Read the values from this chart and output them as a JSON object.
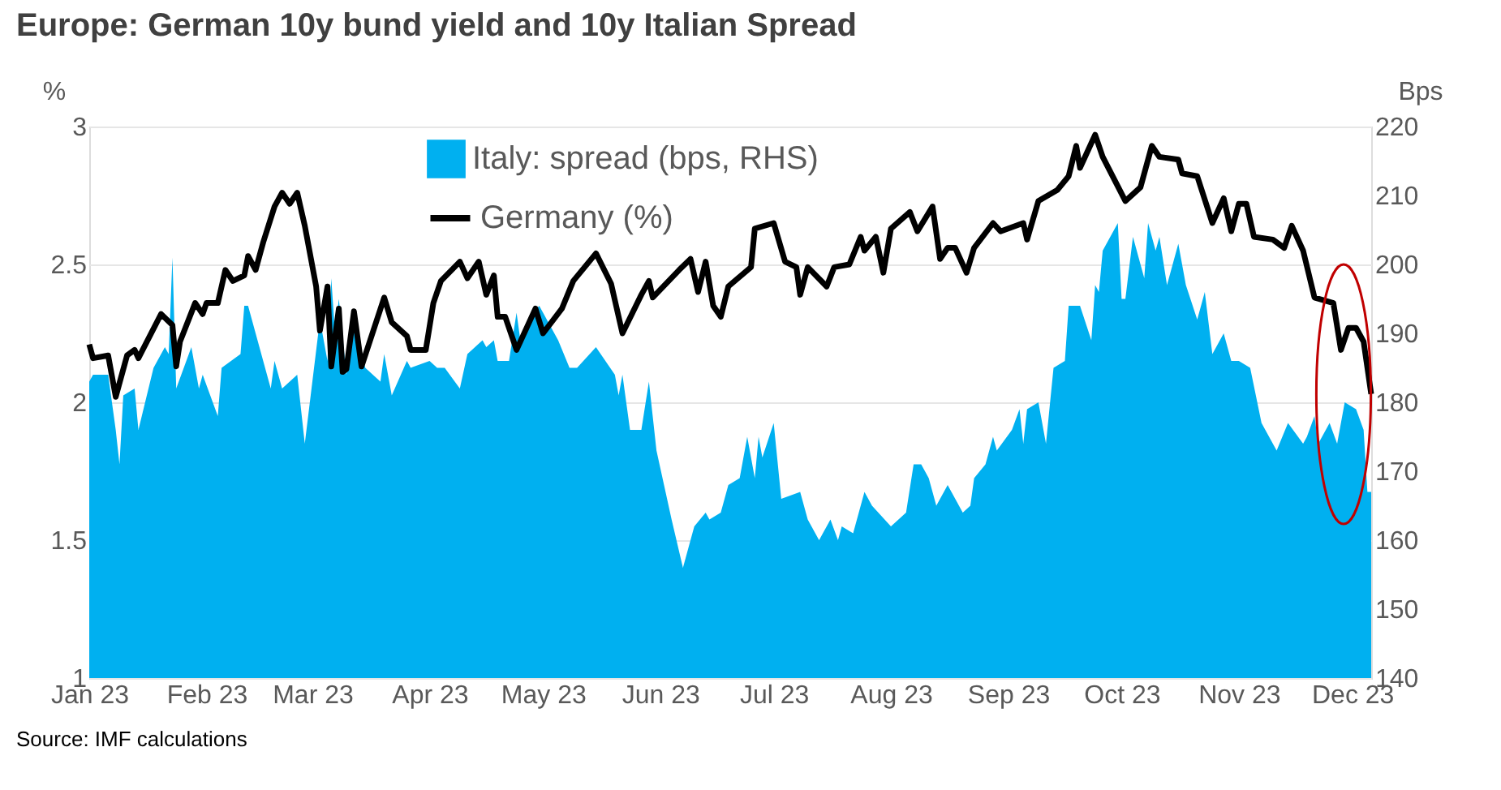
{
  "chart_data": {
    "type": "line",
    "title": "Europe: German 10y bund yield and 10y Italian Spread",
    "ylabel": "%",
    "y2label": "Bps",
    "annotations": [
      "Source:  IMF calculations"
    ],
    "xlim": [
      "2023-01-01",
      "2023-12-06"
    ],
    "xticks": [
      {
        "value": "2023-01-01",
        "label": "Jan 23"
      },
      {
        "value": "2023-02-01",
        "label": "Feb 23"
      },
      {
        "value": "2023-03-01",
        "label": "Mar 23"
      },
      {
        "value": "2023-04-01",
        "label": "Apr 23"
      },
      {
        "value": "2023-05-01",
        "label": "May 23"
      },
      {
        "value": "2023-06-01",
        "label": "Jun 23"
      },
      {
        "value": "2023-07-01",
        "label": "Jul 23"
      },
      {
        "value": "2023-08-01",
        "label": "Aug 23"
      },
      {
        "value": "2023-09-01",
        "label": "Sep 23"
      },
      {
        "value": "2023-10-01",
        "label": "Oct 23"
      },
      {
        "value": "2023-11-01",
        "label": "Nov 23"
      },
      {
        "value": "2023-12-01",
        "label": "Dec 23"
      }
    ],
    "ylim": [
      1,
      3
    ],
    "yticks": [
      {
        "value": 1,
        "label": "1"
      },
      1.5,
      {
        "value": 2,
        "label": "2"
      },
      2.5,
      {
        "value": 3,
        "label": "3"
      }
    ],
    "y2lim": [
      140,
      220
    ],
    "y2ticks": [
      140,
      150,
      160,
      170,
      180,
      190,
      200,
      210,
      220
    ],
    "grid": "y",
    "legend": "top",
    "line_style": "solid",
    "marker": "none",
    "series": [
      {
        "name": "Italy: spread (bps, RHS)",
        "type": "area",
        "axis": "y2",
        "color": "#00b0f0",
        "x": [
          "2023-01-01",
          "2023-01-02",
          "2023-01-06",
          "2023-01-08",
          "2023-01-09",
          "2023-01-10",
          "2023-01-13",
          "2023-01-14",
          "2023-01-18",
          "2023-01-21",
          "2023-01-22",
          "2023-01-23",
          "2023-01-24",
          "2023-01-28",
          "2023-01-30",
          "2023-01-31",
          "2023-02-04",
          "2023-02-05",
          "2023-02-10",
          "2023-02-11",
          "2023-02-12",
          "2023-02-14",
          "2023-02-18",
          "2023-02-19",
          "2023-02-21",
          "2023-02-25",
          "2023-02-27",
          "2023-03-03",
          "2023-03-05",
          "2023-03-06",
          "2023-03-07",
          "2023-03-08",
          "2023-03-10",
          "2023-03-12",
          "2023-03-15",
          "2023-03-19",
          "2023-03-20",
          "2023-03-22",
          "2023-03-26",
          "2023-03-27",
          "2023-04-01",
          "2023-04-03",
          "2023-04-05",
          "2023-04-09",
          "2023-04-11",
          "2023-04-15",
          "2023-04-16",
          "2023-04-18",
          "2023-04-19",
          "2023-04-22",
          "2023-04-24",
          "2023-04-25",
          "2023-04-27",
          "2023-04-30",
          "2023-05-05",
          "2023-05-08",
          "2023-05-10",
          "2023-05-15",
          "2023-05-20",
          "2023-05-21",
          "2023-05-22",
          "2023-05-24",
          "2023-05-27",
          "2023-05-29",
          "2023-05-31",
          "2023-06-02",
          "2023-06-04",
          "2023-06-07",
          "2023-06-10",
          "2023-06-13",
          "2023-06-14",
          "2023-06-17",
          "2023-06-19",
          "2023-06-22",
          "2023-06-24",
          "2023-06-26",
          "2023-06-27",
          "2023-06-28",
          "2023-07-01",
          "2023-07-03",
          "2023-07-08",
          "2023-07-10",
          "2023-07-13",
          "2023-07-16",
          "2023-07-18",
          "2023-07-19",
          "2023-07-22",
          "2023-07-25",
          "2023-07-27",
          "2023-08-01",
          "2023-08-05",
          "2023-08-07",
          "2023-08-09",
          "2023-08-11",
          "2023-08-13",
          "2023-08-16",
          "2023-08-18",
          "2023-08-20",
          "2023-08-22",
          "2023-08-23",
          "2023-08-26",
          "2023-08-28",
          "2023-08-29",
          "2023-09-02",
          "2023-09-04",
          "2023-09-05",
          "2023-09-06",
          "2023-09-09",
          "2023-09-11",
          "2023-09-13",
          "2023-09-16",
          "2023-09-17",
          "2023-09-19",
          "2023-09-20",
          "2023-09-23",
          "2023-09-24",
          "2023-09-25",
          "2023-09-26",
          "2023-09-30",
          "2023-10-01",
          "2023-10-02",
          "2023-10-04",
          "2023-10-07",
          "2023-10-08",
          "2023-10-10",
          "2023-10-11",
          "2023-10-13",
          "2023-10-16",
          "2023-10-18",
          "2023-10-21",
          "2023-10-23",
          "2023-10-25",
          "2023-10-28",
          "2023-10-30",
          "2023-11-01",
          "2023-11-04",
          "2023-11-07",
          "2023-11-11",
          "2023-11-14",
          "2023-11-18",
          "2023-11-19",
          "2023-11-21",
          "2023-11-22",
          "2023-11-25",
          "2023-11-27",
          "2023-11-29",
          "2023-12-02",
          "2023-12-04",
          "2023-12-05",
          "2023-12-06"
        ],
        "values": [
          183,
          184,
          184,
          176,
          171,
          181,
          182,
          176,
          185,
          188,
          187,
          201,
          182,
          188,
          182,
          184,
          178,
          185,
          187,
          194,
          194,
          190,
          182,
          186,
          182,
          184,
          174,
          192,
          186,
          198,
          190,
          195,
          184,
          191,
          185,
          183,
          187,
          181,
          186,
          185,
          186,
          185,
          185,
          182,
          187,
          189,
          188,
          189,
          186,
          186,
          193,
          189,
          192,
          194,
          189,
          185,
          185,
          188,
          184,
          181,
          184,
          176,
          176,
          183,
          173,
          168,
          163,
          156,
          162,
          164,
          163,
          164,
          168,
          169,
          175,
          169,
          175,
          172,
          177,
          166,
          167,
          163,
          160,
          163,
          160,
          162,
          161,
          167,
          165,
          162,
          164,
          171,
          171,
          169,
          165,
          168,
          166,
          164,
          165,
          169,
          171,
          175,
          173,
          176,
          179,
          174,
          179,
          180,
          174,
          185,
          186,
          194,
          194,
          194,
          189,
          197,
          196,
          202,
          206,
          195,
          195,
          204,
          198,
          206,
          202,
          204,
          197,
          203,
          197,
          192,
          196,
          187,
          190,
          186,
          186,
          185,
          177,
          173,
          177,
          174,
          175,
          178,
          174,
          177,
          174,
          180,
          179,
          176,
          167,
          167
        ]
      },
      {
        "name": "Germany (%)",
        "color": "#000000",
        "x": [
          "2023-01-01",
          "2023-01-02",
          "2023-01-06",
          "2023-01-08",
          "2023-01-11",
          "2023-01-13",
          "2023-01-14",
          "2023-01-20",
          "2023-01-23",
          "2023-01-24",
          "2023-01-25",
          "2023-01-29",
          "2023-01-31",
          "2023-02-01",
          "2023-02-04",
          "2023-02-06",
          "2023-02-08",
          "2023-02-11",
          "2023-02-12",
          "2023-02-14",
          "2023-02-16",
          "2023-02-19",
          "2023-02-21",
          "2023-02-23",
          "2023-02-25",
          "2023-02-27",
          "2023-03-02",
          "2023-03-03",
          "2023-03-05",
          "2023-03-06",
          "2023-03-08",
          "2023-03-09",
          "2023-03-10",
          "2023-03-12",
          "2023-03-14",
          "2023-03-20",
          "2023-03-22",
          "2023-03-26",
          "2023-03-27",
          "2023-03-31",
          "2023-04-02",
          "2023-04-04",
          "2023-04-09",
          "2023-04-11",
          "2023-04-14",
          "2023-04-16",
          "2023-04-18",
          "2023-04-19",
          "2023-04-21",
          "2023-04-24",
          "2023-04-29",
          "2023-05-01",
          "2023-05-06",
          "2023-05-09",
          "2023-05-15",
          "2023-05-19",
          "2023-05-22",
          "2023-05-27",
          "2023-05-29",
          "2023-05-30",
          "2023-06-06",
          "2023-06-09",
          "2023-06-11",
          "2023-06-13",
          "2023-06-15",
          "2023-06-17",
          "2023-06-19",
          "2023-06-25",
          "2023-06-26",
          "2023-07-01",
          "2023-07-04",
          "2023-07-07",
          "2023-07-08",
          "2023-07-10",
          "2023-07-15",
          "2023-07-17",
          "2023-07-21",
          "2023-07-24",
          "2023-07-25",
          "2023-07-28",
          "2023-07-30",
          "2023-08-01",
          "2023-08-06",
          "2023-08-08",
          "2023-08-12",
          "2023-08-14",
          "2023-08-16",
          "2023-08-18",
          "2023-08-21",
          "2023-08-23",
          "2023-08-28",
          "2023-08-30",
          "2023-09-05",
          "2023-09-06",
          "2023-09-09",
          "2023-09-14",
          "2023-09-17",
          "2023-09-19",
          "2023-09-20",
          "2023-09-24",
          "2023-09-26",
          "2023-10-02",
          "2023-10-06",
          "2023-10-09",
          "2023-10-11",
          "2023-10-16",
          "2023-10-17",
          "2023-10-21",
          "2023-10-25",
          "2023-10-28",
          "2023-10-30",
          "2023-11-01",
          "2023-11-03",
          "2023-11-05",
          "2023-11-10",
          "2023-11-13",
          "2023-11-15",
          "2023-11-18",
          "2023-11-21",
          "2023-11-26",
          "2023-11-28",
          "2023-11-30",
          "2023-12-02",
          "2023-12-04",
          "2023-12-06"
        ],
        "values": [
          2.21,
          2.16,
          2.17,
          2.02,
          2.17,
          2.19,
          2.16,
          2.32,
          2.28,
          2.13,
          2.22,
          2.36,
          2.32,
          2.36,
          2.36,
          2.48,
          2.44,
          2.46,
          2.53,
          2.48,
          2.58,
          2.71,
          2.76,
          2.72,
          2.76,
          2.64,
          2.42,
          2.26,
          2.42,
          2.13,
          2.34,
          2.11,
          2.12,
          2.33,
          2.13,
          2.38,
          2.29,
          2.24,
          2.19,
          2.19,
          2.36,
          2.44,
          2.51,
          2.45,
          2.51,
          2.39,
          2.46,
          2.31,
          2.31,
          2.19,
          2.34,
          2.25,
          2.34,
          2.44,
          2.54,
          2.43,
          2.25,
          2.39,
          2.44,
          2.38,
          2.48,
          2.52,
          2.4,
          2.51,
          2.35,
          2.31,
          2.42,
          2.49,
          2.63,
          2.65,
          2.51,
          2.49,
          2.39,
          2.49,
          2.42,
          2.49,
          2.5,
          2.6,
          2.55,
          2.6,
          2.47,
          2.63,
          2.69,
          2.62,
          2.71,
          2.52,
          2.56,
          2.56,
          2.47,
          2.56,
          2.65,
          2.62,
          2.65,
          2.59,
          2.73,
          2.77,
          2.82,
          2.93,
          2.85,
          2.97,
          2.89,
          2.73,
          2.78,
          2.93,
          2.89,
          2.88,
          2.83,
          2.82,
          2.65,
          2.74,
          2.62,
          2.72,
          2.72,
          2.6,
          2.59,
          2.56,
          2.64,
          2.55,
          2.38,
          2.36,
          2.19,
          2.27,
          2.27,
          2.22,
          2.03
        ]
      }
    ]
  }
}
